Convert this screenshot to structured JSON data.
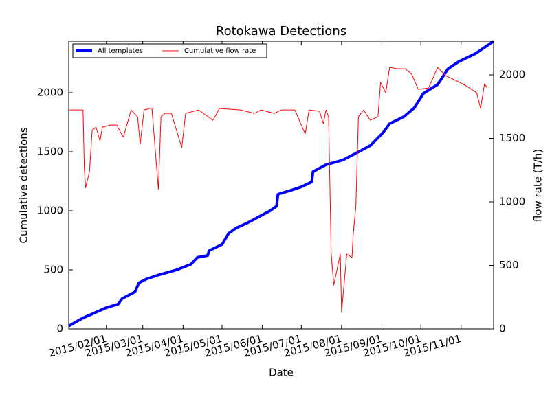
{
  "chart_data": {
    "type": "line",
    "title": "Rotokawa Detections",
    "xlabel": "Date",
    "ylabel": "Cumulative detections",
    "y2label": "flow rate (T/h)",
    "xlim": [
      "2015-01-03",
      "2015-11-26"
    ],
    "xticks": [
      {
        "value": "2015-02-01",
        "label": "2015/02/01"
      },
      {
        "value": "2015-03-01",
        "label": "2015/03/01"
      },
      {
        "value": "2015-04-01",
        "label": "2015/04/01"
      },
      {
        "value": "2015-05-01",
        "label": "2015/05/01"
      },
      {
        "value": "2015-06-01",
        "label": "2015/06/01"
      },
      {
        "value": "2015-07-01",
        "label": "2015/07/01"
      },
      {
        "value": "2015-08-01",
        "label": "2015/08/01"
      },
      {
        "value": "2015-09-01",
        "label": "2015/09/01"
      },
      {
        "value": "2015-10-01",
        "label": "2015/10/01"
      },
      {
        "value": "2015-11-01",
        "label": "2015/11/01"
      }
    ],
    "ylim": [
      0,
      2436
    ],
    "yticks": [
      0,
      500,
      1000,
      1500,
      2000
    ],
    "y2lim": [
      0,
      2265
    ],
    "y2ticks": [
      0,
      500,
      1000,
      1500,
      2000
    ],
    "y2color": "#ff0000",
    "legend": "upper left",
    "series": [
      {
        "name": "All templates",
        "color": "#0000ff",
        "width": 4,
        "x": [
          "2015-01-03",
          "2015-01-14",
          "2015-02-01",
          "2015-02-10",
          "2015-02-13",
          "2015-02-23",
          "2015-02-26",
          "2015-03-04",
          "2015-03-14",
          "2015-03-27",
          "2015-04-07",
          "2015-04-12",
          "2015-04-20",
          "2015-04-21",
          "2015-05-01",
          "2015-05-06",
          "2015-05-12",
          "2015-05-20",
          "2015-05-28",
          "2015-06-07",
          "2015-06-12",
          "2015-06-13",
          "2015-06-23",
          "2015-07-01",
          "2015-07-09",
          "2015-07-10",
          "2015-07-20",
          "2015-08-02",
          "2015-08-12",
          "2015-08-23",
          "2015-09-02",
          "2015-09-07",
          "2015-09-18",
          "2015-09-26",
          "2015-10-03",
          "2015-10-14",
          "2015-10-22",
          "2015-10-30",
          "2015-11-12",
          "2015-11-26"
        ],
        "values": [
          25,
          93,
          180,
          210,
          256,
          314,
          390,
          424,
          460,
          500,
          547,
          605,
          622,
          663,
          715,
          808,
          855,
          895,
          942,
          1000,
          1040,
          1140,
          1174,
          1203,
          1244,
          1331,
          1390,
          1430,
          1488,
          1552,
          1663,
          1738,
          1797,
          1872,
          1994,
          2070,
          2204,
          2262,
          2331,
          2436
        ]
      },
      {
        "name": "Cumulative flow rate",
        "color": "#ff0000",
        "width": 1,
        "axis": "y2",
        "x": [
          "2015-01-03",
          "2015-01-14",
          "2015-01-15",
          "2015-01-16",
          "2015-01-19",
          "2015-01-21",
          "2015-01-24",
          "2015-01-27",
          "2015-01-29",
          "2015-02-04",
          "2015-02-09",
          "2015-02-14",
          "2015-02-20",
          "2015-02-25",
          "2015-02-27",
          "2015-03-02",
          "2015-03-08",
          "2015-03-13",
          "2015-03-15",
          "2015-03-18",
          "2015-03-23",
          "2015-03-31",
          "2015-04-03",
          "2015-04-13",
          "2015-04-24",
          "2015-04-29",
          "2015-05-15",
          "2015-05-26",
          "2015-05-31",
          "2015-06-10",
          "2015-06-16",
          "2015-06-26",
          "2015-07-04",
          "2015-07-07",
          "2015-07-15",
          "2015-07-18",
          "2015-07-20",
          "2015-07-22",
          "2015-07-24",
          "2015-07-26",
          "2015-07-31",
          "2015-08-01",
          "2015-08-05",
          "2015-08-09",
          "2015-08-10",
          "2015-08-12",
          "2015-08-14",
          "2015-08-18",
          "2015-08-23",
          "2015-08-29",
          "2015-08-31",
          "2015-09-04",
          "2015-09-07",
          "2015-09-13",
          "2015-09-19",
          "2015-09-24",
          "2015-09-29",
          "2015-10-07",
          "2015-10-14",
          "2015-10-20",
          "2015-10-31",
          "2015-11-05",
          "2015-11-13",
          "2015-11-16",
          "2015-11-19",
          "2015-11-21"
        ],
        "values": [
          1724,
          1724,
          1265,
          1113,
          1238,
          1562,
          1589,
          1481,
          1589,
          1605,
          1605,
          1508,
          1724,
          1670,
          1454,
          1724,
          1740,
          1100,
          1670,
          1697,
          1697,
          1427,
          1697,
          1724,
          1643,
          1735,
          1724,
          1697,
          1724,
          1697,
          1724,
          1724,
          1535,
          1724,
          1713,
          1616,
          1724,
          1670,
          589,
          346,
          589,
          130,
          589,
          562,
          751,
          968,
          1670,
          1724,
          1643,
          1670,
          1940,
          1859,
          2059,
          2048,
          2048,
          2005,
          1886,
          1897,
          2059,
          1994,
          1940,
          1913,
          1859,
          1735,
          1930,
          1897
        ]
      }
    ]
  }
}
